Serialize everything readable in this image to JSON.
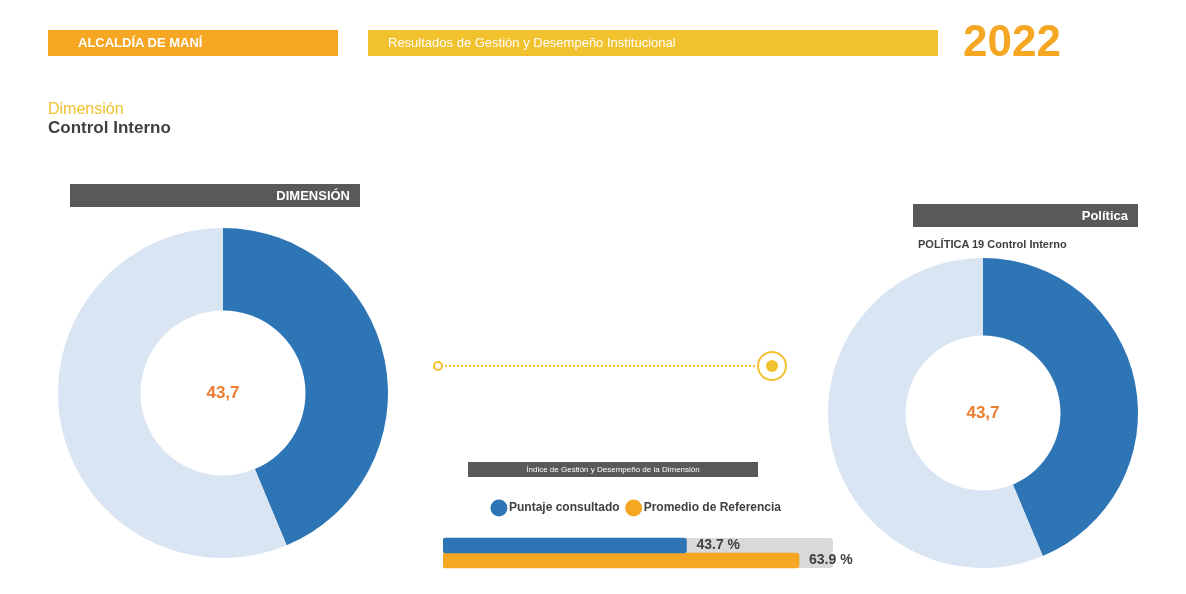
{
  "chart_data": [
    {
      "type": "other",
      "annotations": [
        "ALCALDÍA DE MANÍ",
        "Resultados de Gestión y Desempeño Institucional",
        "2022",
        "Dimensión",
        "Control Interno"
      ]
    },
    {
      "type": "donut",
      "title": "DIMENSIÓN",
      "categories": [
        null,
        null
      ],
      "values": [
        43.7,
        56.3
      ],
      "colors": [
        "#2e75b6",
        "#dae5f3"
      ],
      "value_labels": [
        "43,7",
        null
      ]
    },
    {
      "type": "donut",
      "title": "Política",
      "subtitle": "POLÍTICA 19 Control Interno",
      "categories": [
        null,
        null
      ],
      "values": [
        43.7,
        56.3
      ],
      "colors": [
        "#2e75b6",
        "#dae5f3"
      ],
      "value_labels": [
        "43,7",
        null
      ]
    },
    {
      "type": "bar",
      "orientation": "horizontal",
      "title": "Índice de Gestión y Desempeño de la Dimensión",
      "categories": [
        null
      ],
      "tick_labels": false,
      "legend": "top",
      "series": [
        {
          "name": "Puntaje consultado",
          "color": "#2e75b6",
          "values": [
            43.7
          ],
          "value_labels": [
            "43.7 %"
          ]
        },
        {
          "name": "Promedio de Referencia",
          "color": "#f5a623",
          "values": [
            63.9
          ],
          "value_labels": [
            "63.9 %"
          ]
        }
      ]
    }
  ]
}
